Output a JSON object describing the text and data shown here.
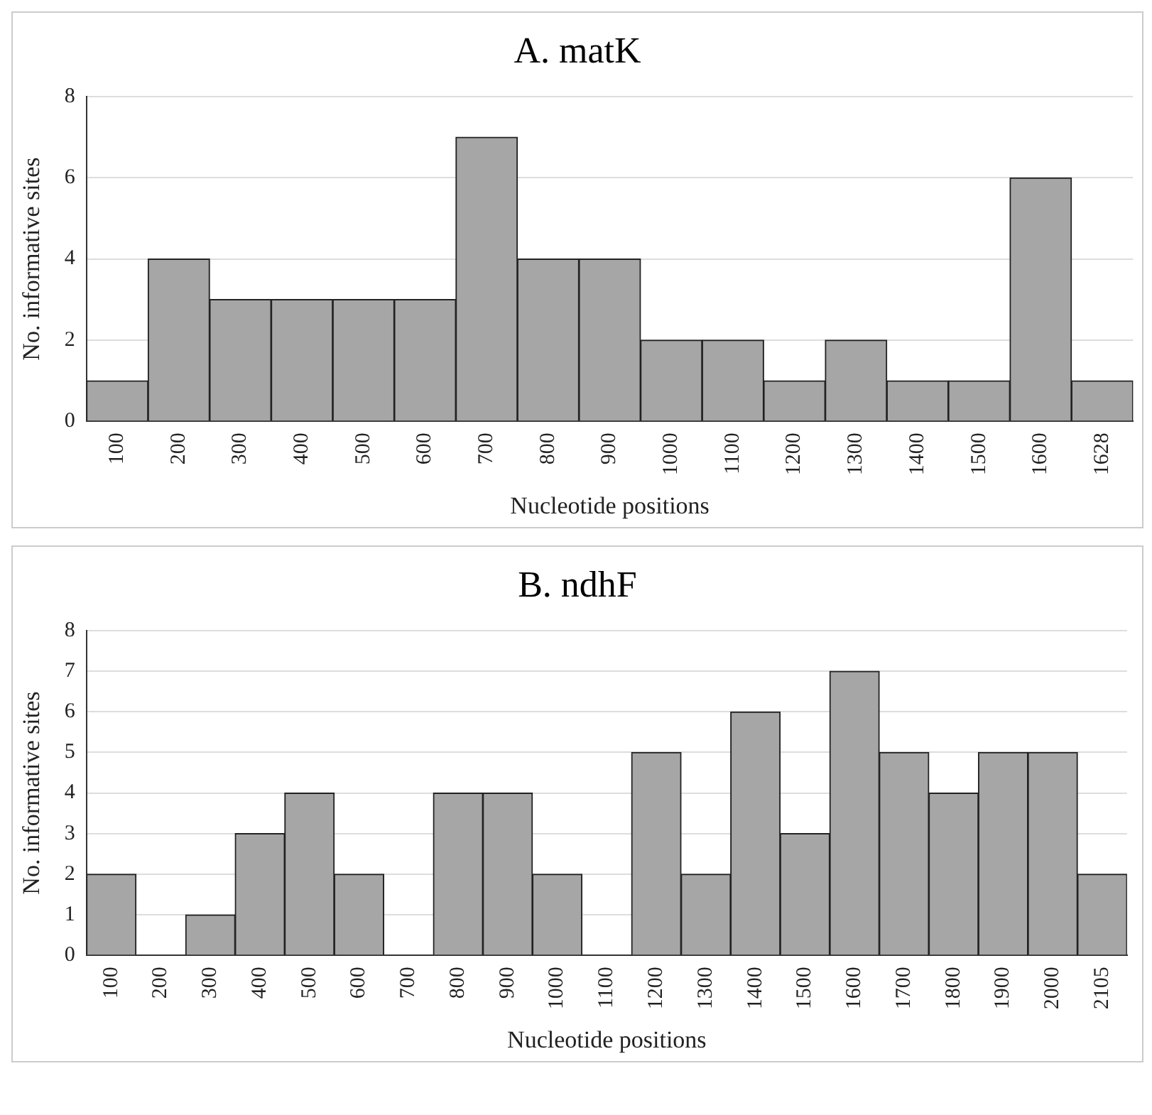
{
  "chart_data": [
    {
      "type": "bar",
      "title": "A. matK",
      "xlabel": "Nucleotide positions",
      "ylabel": "No. informative sites",
      "categories": [
        "100",
        "200",
        "300",
        "400",
        "500",
        "600",
        "700",
        "800",
        "900",
        "1000",
        "1100",
        "1200",
        "1300",
        "1400",
        "1500",
        "1600",
        "1628"
      ],
      "values": [
        1,
        4,
        3,
        3,
        3,
        3,
        7,
        4,
        4,
        2,
        2,
        1,
        2,
        1,
        1,
        6,
        1
      ],
      "color": "#a6a6a6",
      "ylim": [
        0,
        8
      ],
      "yticks": [
        0,
        2,
        4,
        6,
        8
      ],
      "grid": "y"
    },
    {
      "type": "bar",
      "title": "B. ndhF",
      "xlabel": "Nucleotide positions",
      "ylabel": "No. informative sites",
      "categories": [
        "100",
        "200",
        "300",
        "400",
        "500",
        "600",
        "700",
        "800",
        "900",
        "1000",
        "1100",
        "1200",
        "1300",
        "1400",
        "1500",
        "1600",
        "1700",
        "1800",
        "1900",
        "2000",
        "2105"
      ],
      "values": [
        2,
        0,
        1,
        3,
        4,
        2,
        0,
        4,
        4,
        2,
        0,
        5,
        2,
        6,
        3,
        7,
        5,
        4,
        5,
        5,
        2
      ],
      "color": "#a6a6a6",
      "ylim": [
        0,
        8
      ],
      "yticks": [
        0,
        1,
        2,
        3,
        4,
        5,
        6,
        7,
        8
      ],
      "grid": "y"
    }
  ]
}
